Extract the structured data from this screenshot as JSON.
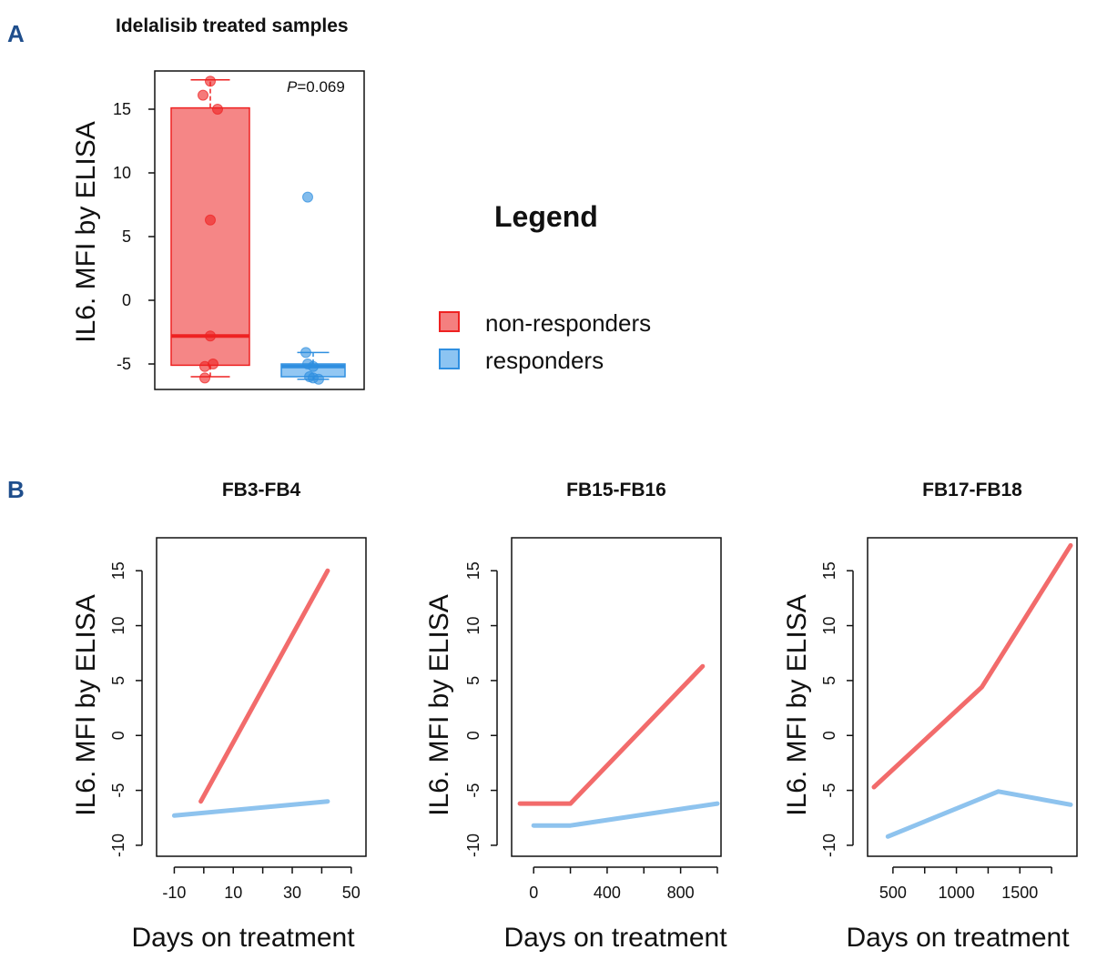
{
  "colors": {
    "non_responders": "#f26b6b",
    "non_responders_dark": "#ee2222",
    "non_responders_fill": "#f47f7f",
    "responders": "#8ec3ee",
    "responders_dark": "#2f8fe0",
    "responders_fill": "#8cc4f2"
  },
  "panel_a": {
    "letter": "A",
    "title": "Idelalisib treated samples",
    "ylabel": "IL6. MFI by ELISA",
    "p_label": "P",
    "p_value": "=0.069",
    "yticks": [
      "-5",
      "0",
      "5",
      "10",
      "15"
    ]
  },
  "legend": {
    "title": "Legend",
    "items": [
      {
        "label": "non-responders",
        "color_key": "non_responders"
      },
      {
        "label": "responders",
        "color_key": "responders"
      }
    ]
  },
  "panel_b": {
    "letter": "B",
    "ylabel": "IL6. MFI by ELISA",
    "xlabel": "Days on treatment",
    "plots": [
      {
        "title": "FB3-FB4",
        "xticks": [
          "-10",
          "10",
          "30",
          "50"
        ],
        "yticks": [
          "-10",
          "-5",
          "0",
          "5",
          "10",
          "15"
        ]
      },
      {
        "title": "FB15-FB16",
        "xticks": [
          "0",
          "400",
          "800"
        ],
        "yticks": [
          "-10",
          "-5",
          "0",
          "5",
          "10",
          "15"
        ]
      },
      {
        "title": "FB17-FB18",
        "xticks": [
          "500",
          "1000",
          "1500"
        ],
        "yticks": [
          "-10",
          "-5",
          "0",
          "5",
          "10",
          "15"
        ]
      }
    ]
  },
  "chart_data": [
    {
      "type": "box",
      "title": "Idelalisib treated samples",
      "ylabel": "IL6. MFI by ELISA",
      "ylim": [
        -7,
        18
      ],
      "annotation": "P=0.069",
      "groups": [
        {
          "name": "non-responders",
          "box": {
            "q1": -5.1,
            "median": -2.8,
            "q3": 15.1,
            "whisker_low": -6.0,
            "whisker_high": 17.3
          },
          "points": [
            17.2,
            16.1,
            15.0,
            6.3,
            -2.8,
            -5.0,
            -5.2,
            -6.1
          ]
        },
        {
          "name": "responders",
          "box": {
            "q1": -6.0,
            "median": -5.2,
            "q3": -5.0,
            "whisker_low": -6.2,
            "whisker_high": -4.1
          },
          "points": [
            8.1,
            -4.1,
            -5.0,
            -5.2,
            -6.0,
            -6.1,
            -6.2
          ]
        }
      ]
    },
    {
      "type": "line",
      "title": "FB3-FB4",
      "xlabel": "Days on treatment",
      "ylabel": "IL6. MFI by ELISA",
      "xlim": [
        -16,
        55
      ],
      "ylim": [
        -11,
        18
      ],
      "series": [
        {
          "name": "non-responders",
          "x": [
            -1,
            42
          ],
          "y": [
            -6.0,
            15.0
          ]
        },
        {
          "name": "responders",
          "x": [
            -10,
            42
          ],
          "y": [
            -7.3,
            -6.0
          ]
        }
      ]
    },
    {
      "type": "line",
      "title": "FB15-FB16",
      "xlabel": "Days on treatment",
      "ylabel": "IL6. MFI by ELISA",
      "xlim": [
        -120,
        1020
      ],
      "ylim": [
        -11,
        18
      ],
      "series": [
        {
          "name": "non-responders",
          "x": [
            -75,
            200,
            920
          ],
          "y": [
            -6.2,
            -6.2,
            6.3
          ]
        },
        {
          "name": "responders",
          "x": [
            0,
            200,
            1000
          ],
          "y": [
            -8.2,
            -8.2,
            -6.2
          ]
        }
      ]
    },
    {
      "type": "line",
      "title": "FB17-FB18",
      "xlabel": "Days on treatment",
      "ylabel": "IL6. MFI by ELISA",
      "xlim": [
        300,
        1950
      ],
      "ylim": [
        -11,
        18
      ],
      "series": [
        {
          "name": "non-responders",
          "x": [
            350,
            1200,
            1900
          ],
          "y": [
            -4.7,
            4.4,
            17.3
          ]
        },
        {
          "name": "responders",
          "x": [
            460,
            1330,
            1900
          ],
          "y": [
            -9.2,
            -5.1,
            -6.3
          ]
        }
      ]
    }
  ]
}
